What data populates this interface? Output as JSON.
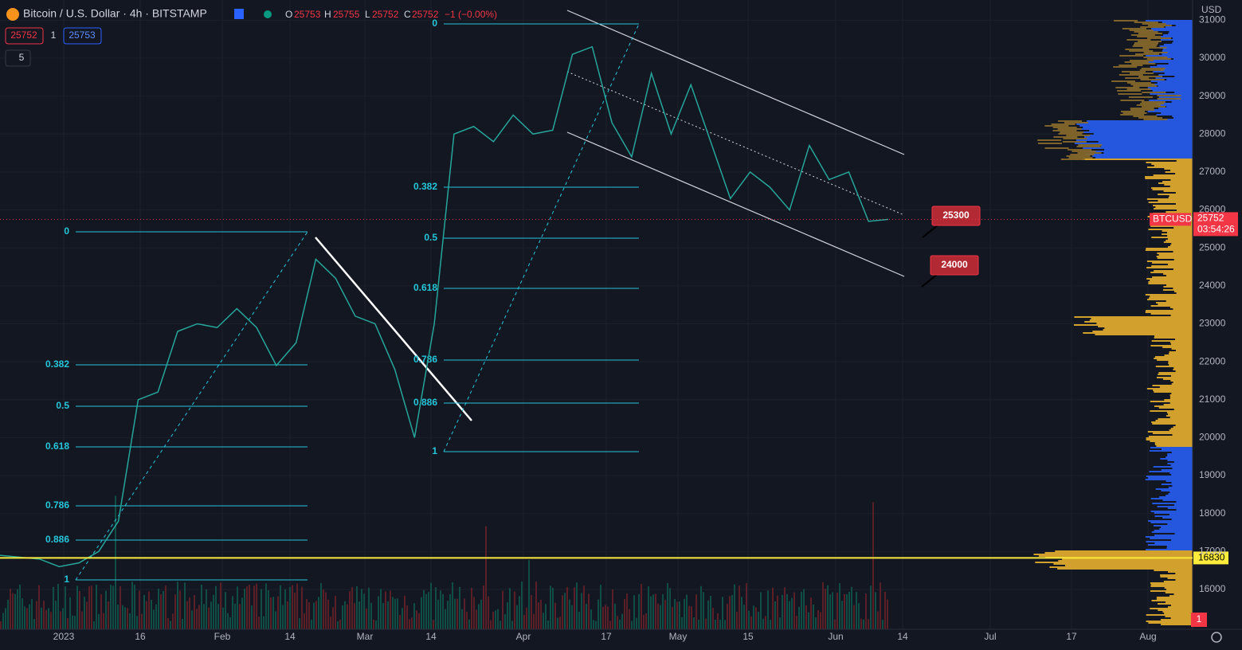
{
  "header": {
    "symbol": "Bitcoin / U.S. Dollar · 4h · BITSTAMP",
    "o_label": "O",
    "open": "25753",
    "h_label": "H",
    "high": "25755",
    "l_label": "L",
    "low": "25752",
    "c_label": "C",
    "close": "25752",
    "change": "−1 (−0.00%)",
    "sell": "25752",
    "quantity": "1",
    "buy": "25753",
    "indicators": "5"
  },
  "price_axis": {
    "currency": "USD",
    "ticks": [
      16000,
      17000,
      18000,
      19000,
      20000,
      21000,
      22000,
      23000,
      24000,
      25000,
      26000,
      27000,
      28000,
      29000,
      30000,
      31000
    ],
    "last_symbol": "BTCUSD",
    "last_price": 25752,
    "countdown": "03:54:26",
    "level": 16830,
    "bottom_badge": "1"
  },
  "time_axis": {
    "labels": [
      "2023",
      "16",
      "Feb",
      "14",
      "Mar",
      "14",
      "Apr",
      "17",
      "May",
      "15",
      "Jun",
      "14",
      "Jul",
      "17",
      "Aug"
    ]
  },
  "price_trace": [
    16900,
    16850,
    16800,
    16600,
    16700,
    17000,
    17800,
    21000,
    21200,
    22800,
    23000,
    22900,
    23400,
    22900,
    21900,
    22500,
    24700,
    24200,
    23200,
    23000,
    21800,
    20000,
    23000,
    28000,
    28200,
    27800,
    28500,
    28000,
    28100,
    30100,
    30300,
    28300,
    27400,
    29600,
    28000,
    29300,
    27800,
    26300,
    27000,
    26600,
    26000,
    27700,
    26800,
    27000,
    25700,
    25752
  ],
  "fib_left": [
    "0",
    "0.382",
    "0.5",
    "0.618",
    "0.786",
    "0.886",
    "1"
  ],
  "fib_right": [
    "0",
    "0.382",
    "0.5",
    "0.618",
    "0.786",
    "0.886",
    "1"
  ],
  "callouts": [
    "25300",
    "24000"
  ]
}
